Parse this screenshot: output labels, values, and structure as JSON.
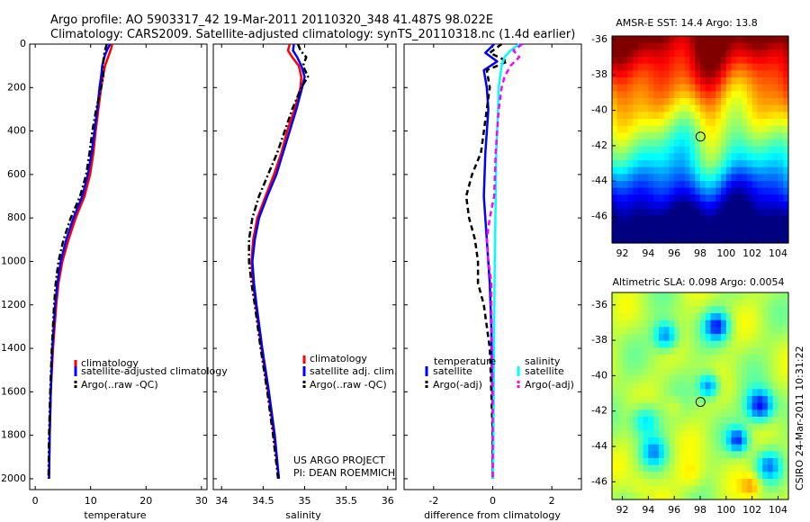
{
  "header": {
    "line1": "Argo profile: AO 5903317_42 19-Mar-2011 20110320_348 41.487S 98.022E",
    "line2": "Climatology: CARS2009. Satellite-adjusted climatology: synTS_20110318.nc (1.4d earlier)"
  },
  "credit": {
    "project": "US ARGO PROJECT",
    "pi": "PI: DEAN ROEMMICH",
    "stamp": "CSIRO 24-Mar-2011 10:31:22"
  },
  "colors": {
    "climatology": "#ff0000",
    "satellite": "#0000ff",
    "argo": "#000000",
    "sal_satellite": "#00ffff",
    "sal_argo": "#ff00ff"
  },
  "chart_data": [
    {
      "id": "temperature",
      "type": "line",
      "xlabel": "temperature",
      "ylabel": "",
      "xlim": [
        -1,
        31
      ],
      "ylim": [
        2050,
        0
      ],
      "xticks": [
        "0",
        "10",
        "20",
        "30"
      ],
      "xtick_values": [
        0,
        10,
        20,
        30
      ],
      "yticks": [
        "0",
        "200",
        "400",
        "600",
        "800",
        "1000",
        "1200",
        "1400",
        "1600",
        "1800",
        "2000"
      ],
      "ytick_values": [
        0,
        200,
        400,
        600,
        800,
        1000,
        1200,
        1400,
        1600,
        1800,
        2000
      ],
      "legend": [
        "climatology",
        "satellite-adjusted climatology",
        "Argo(..raw -QC)"
      ],
      "series": [
        {
          "name": "climatology",
          "color": "#ff0000",
          "dash": "",
          "depth": [
            0,
            20,
            50,
            100,
            150,
            200,
            300,
            400,
            500,
            600,
            700,
            800,
            900,
            1000,
            1100,
            1200,
            1400,
            1600,
            1800,
            2000
          ],
          "values": [
            13.9,
            13.7,
            13.3,
            12.6,
            12.2,
            11.9,
            11.4,
            10.9,
            10.5,
            9.9,
            8.9,
            7.3,
            6.0,
            4.9,
            4.2,
            3.8,
            3.2,
            2.8,
            2.6,
            2.5
          ]
        },
        {
          "name": "satellite",
          "color": "#0000ff",
          "dash": "",
          "depth": [
            0,
            20,
            50,
            100,
            150,
            200,
            300,
            400,
            500,
            600,
            700,
            800,
            900,
            1000,
            1100,
            1200,
            1400,
            1600,
            1800,
            2000
          ],
          "values": [
            13.5,
            13.1,
            12.6,
            12.1,
            11.9,
            11.6,
            11.2,
            10.7,
            10.2,
            9.5,
            8.5,
            6.9,
            5.6,
            4.6,
            4.0,
            3.6,
            3.1,
            2.8,
            2.6,
            2.5
          ]
        },
        {
          "name": "Argo",
          "color": "#000000",
          "dash": "7,3,2,3",
          "depth": [
            0,
            20,
            50,
            100,
            150,
            200,
            300,
            400,
            500,
            600,
            700,
            800,
            900,
            1000,
            1100,
            1200,
            1400,
            1600,
            1800,
            2000
          ],
          "values": [
            12.9,
            12.7,
            12.4,
            12.2,
            12.3,
            11.9,
            11.0,
            10.3,
            9.8,
            9.2,
            8.1,
            6.4,
            5.1,
            4.2,
            3.7,
            3.4,
            3.0,
            2.7,
            2.5,
            2.4
          ]
        }
      ]
    },
    {
      "id": "salinity",
      "type": "line",
      "xlabel": "salinity",
      "ylabel": "",
      "xlim": [
        33.9,
        36.1
      ],
      "ylim": [
        2050,
        0
      ],
      "xticks": [
        "34",
        "34.5",
        "35",
        "35.5",
        "36"
      ],
      "xtick_values": [
        34,
        34.5,
        35,
        35.5,
        36
      ],
      "yticks": [],
      "ytick_values": [],
      "legend": [
        "climatology",
        "satellite adj. clim.",
        "Argo(..raw -QC)"
      ],
      "series": [
        {
          "name": "climatology",
          "color": "#ff0000",
          "dash": "",
          "depth": [
            0,
            30,
            60,
            100,
            150,
            200,
            300,
            400,
            500,
            600,
            700,
            800,
            900,
            1000,
            1100,
            1200,
            1400,
            1600,
            1800,
            2000
          ],
          "values": [
            34.82,
            34.8,
            34.85,
            34.93,
            34.96,
            34.95,
            34.88,
            34.79,
            34.72,
            34.63,
            34.53,
            34.43,
            34.38,
            34.36,
            34.38,
            34.41,
            34.48,
            34.56,
            34.63,
            34.69
          ]
        },
        {
          "name": "satellite",
          "color": "#0000ff",
          "dash": "",
          "depth": [
            0,
            30,
            60,
            100,
            150,
            200,
            300,
            400,
            500,
            600,
            700,
            800,
            900,
            1000,
            1100,
            1200,
            1400,
            1600,
            1800,
            2000
          ],
          "values": [
            34.87,
            34.86,
            34.91,
            34.96,
            35.0,
            34.97,
            34.9,
            34.82,
            34.74,
            34.66,
            34.55,
            34.45,
            34.4,
            34.37,
            34.39,
            34.42,
            34.49,
            34.57,
            34.64,
            34.69
          ]
        },
        {
          "name": "Argo",
          "color": "#000000",
          "dash": "7,3,2,3",
          "depth": [
            0,
            30,
            60,
            100,
            150,
            200,
            300,
            400,
            500,
            600,
            700,
            800,
            900,
            1000,
            1100,
            1200,
            1400,
            1600,
            1800,
            2000
          ],
          "values": [
            34.92,
            34.95,
            35.02,
            34.98,
            35.04,
            34.96,
            34.85,
            34.76,
            34.67,
            34.56,
            34.45,
            34.37,
            34.33,
            34.33,
            34.36,
            34.4,
            34.47,
            34.55,
            34.62,
            34.68
          ]
        }
      ]
    },
    {
      "id": "difference",
      "type": "line",
      "xlabel": "difference from climatology",
      "ylabel": "",
      "xlim": [
        -3.0,
        3.0
      ],
      "ylim": [
        2050,
        0
      ],
      "xticks": [
        "-2",
        "0",
        "2"
      ],
      "xtick_values": [
        -2,
        0,
        2
      ],
      "yticks": [],
      "ytick_values": [],
      "legend_left_title": "temperature",
      "legend_right_title": "salinity",
      "legend": [
        "satellite",
        "Argo(-adj)",
        "satellite",
        "Argo(-adj)"
      ],
      "series": [
        {
          "name": "temperature satellite",
          "color": "#0000ff",
          "dash": "",
          "depth": [
            0,
            40,
            80,
            120,
            200,
            300,
            500,
            700,
            900,
            1100,
            1300,
            1500,
            1700,
            1900,
            2000
          ],
          "values": [
            0.05,
            -0.25,
            0.15,
            -0.3,
            -0.2,
            -0.15,
            -0.25,
            -0.3,
            -0.2,
            -0.1,
            -0.05,
            -0.03,
            0.0,
            0.0,
            0.0
          ]
        },
        {
          "name": "temperature Argo(-adj)",
          "color": "#000000",
          "dash": "6,4",
          "depth": [
            0,
            40,
            80,
            120,
            200,
            300,
            500,
            600,
            700,
            800,
            900,
            1000,
            1100,
            1200,
            1300,
            1400,
            1600,
            1800,
            2000
          ],
          "values": [
            0.3,
            -0.1,
            0.5,
            -0.2,
            -0.1,
            -0.2,
            -0.4,
            -0.7,
            -0.9,
            -0.8,
            -0.6,
            -0.5,
            -0.5,
            -0.3,
            -0.2,
            -0.1,
            -0.05,
            0.0,
            0.0
          ]
        },
        {
          "name": "salinity satellite",
          "color": "#00ffff",
          "dash": "",
          "depth": [
            0,
            30,
            60,
            100,
            150,
            200,
            300,
            400,
            500,
            700,
            900,
            1100,
            1300,
            1500,
            1700,
            1900,
            2000
          ],
          "values": [
            0.9,
            0.6,
            0.4,
            0.3,
            0.25,
            0.2,
            0.18,
            0.15,
            0.12,
            0.1,
            0.08,
            0.06,
            0.05,
            0.04,
            0.03,
            0.02,
            0.0
          ]
        },
        {
          "name": "salinity Argo(-adj)",
          "color": "#ff00ff",
          "dash": "6,4",
          "depth": [
            0,
            30,
            60,
            100,
            150,
            200,
            300,
            400,
            500,
            700,
            800,
            900,
            1000,
            1100,
            1200,
            1400,
            1600,
            1800,
            2000
          ],
          "values": [
            1.0,
            0.7,
            0.9,
            0.6,
            0.4,
            0.3,
            0.2,
            0.15,
            0.1,
            0.05,
            -0.1,
            -0.2,
            -0.15,
            -0.05,
            -0.05,
            -0.02,
            0.0,
            0.0,
            0.0
          ]
        }
      ]
    },
    {
      "id": "sst_map",
      "type": "heatmap",
      "title": "AMSR-E SST: 14.4   Argo: 13.8",
      "xticks": [
        "92",
        "94",
        "96",
        "98",
        "100",
        "102",
        "104"
      ],
      "xtick_values": [
        92,
        94,
        96,
        98,
        100,
        102,
        104
      ],
      "yticks": [
        "-36",
        "-38",
        "-40",
        "-42",
        "-44",
        "-46"
      ],
      "ytick_values": [
        -36,
        -38,
        -40,
        -42,
        -44,
        -46
      ],
      "xlim": [
        91.2,
        104.8
      ],
      "ylim": [
        -47.5,
        -35.8
      ],
      "marker": {
        "lon": 98.022,
        "lat": -41.487
      }
    },
    {
      "id": "sla_map",
      "type": "heatmap",
      "title": "Altimetric SLA: 0.098   Argo: 0.0054",
      "xticks": [
        "92",
        "94",
        "96",
        "98",
        "100",
        "102",
        "104"
      ],
      "xtick_values": [
        92,
        94,
        96,
        98,
        100,
        102,
        104
      ],
      "yticks": [
        "-36",
        "-38",
        "-40",
        "-42",
        "-44",
        "-46"
      ],
      "ytick_values": [
        -36,
        -38,
        -40,
        -42,
        -44,
        -46
      ],
      "xlim": [
        91.2,
        104.8
      ],
      "ylim": [
        -47.0,
        -35.3
      ],
      "marker": {
        "lon": 98.022,
        "lat": -41.487
      }
    }
  ]
}
